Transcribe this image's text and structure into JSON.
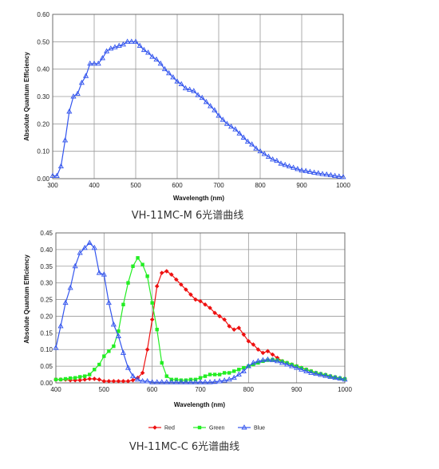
{
  "charts": [
    {
      "caption": "VH-11MC-M 6光谱曲线",
      "chart_data": {
        "type": "line",
        "xlabel": "Wavelength (nm)",
        "ylabel": "Absolute Quantum Efficiency",
        "xlim": [
          300,
          1000
        ],
        "ylim": [
          0,
          0.6
        ],
        "xticks": [
          300,
          400,
          500,
          600,
          700,
          800,
          900,
          1000
        ],
        "yticks": [
          0.0,
          0.1,
          0.2,
          0.3,
          0.4,
          0.5,
          0.6
        ],
        "ytick_labels": [
          "0.00",
          "0.10",
          "0.20",
          "0.30",
          "0.40",
          "0.50",
          "0.60"
        ],
        "grid": true,
        "legend": "none",
        "series": [
          {
            "color": "#3355ee",
            "marker": "triangle",
            "x": [
              300,
              310,
              320,
              330,
              340,
              350,
              360,
              370,
              380,
              390,
              400,
              410,
              420,
              430,
              440,
              450,
              460,
              470,
              480,
              490,
              500,
              510,
              520,
              530,
              540,
              550,
              560,
              570,
              580,
              590,
              600,
              610,
              620,
              630,
              640,
              650,
              660,
              670,
              680,
              690,
              700,
              710,
              720,
              730,
              740,
              750,
              760,
              770,
              780,
              790,
              800,
              810,
              820,
              830,
              840,
              850,
              860,
              870,
              880,
              890,
              900,
              910,
              920,
              930,
              940,
              950,
              960,
              970,
              980,
              990,
              1000
            ],
            "y": [
              0.01,
              0.01,
              0.045,
              0.14,
              0.245,
              0.3,
              0.31,
              0.35,
              0.375,
              0.42,
              0.42,
              0.42,
              0.44,
              0.465,
              0.475,
              0.48,
              0.485,
              0.49,
              0.5,
              0.5,
              0.5,
              0.485,
              0.47,
              0.46,
              0.445,
              0.435,
              0.42,
              0.4,
              0.385,
              0.37,
              0.355,
              0.345,
              0.33,
              0.325,
              0.32,
              0.305,
              0.295,
              0.28,
              0.265,
              0.25,
              0.23,
              0.215,
              0.2,
              0.19,
              0.18,
              0.165,
              0.15,
              0.135,
              0.125,
              0.11,
              0.1,
              0.09,
              0.08,
              0.07,
              0.065,
              0.055,
              0.05,
              0.045,
              0.04,
              0.035,
              0.03,
              0.028,
              0.025,
              0.022,
              0.02,
              0.017,
              0.015,
              0.013,
              0.01,
              0.008,
              0.006
            ]
          }
        ]
      }
    },
    {
      "caption": "VH-11MC-C 6光谱曲线",
      "chart_data": {
        "type": "line",
        "xlabel": "Wavelength (nm)",
        "ylabel": "Absolute Quantum Efficiency",
        "xlim": [
          400,
          1000
        ],
        "ylim": [
          0,
          0.45
        ],
        "xticks": [
          400,
          500,
          600,
          700,
          800,
          900,
          1000
        ],
        "yticks": [
          0.0,
          0.05,
          0.1,
          0.15,
          0.2,
          0.25,
          0.3,
          0.35,
          0.4,
          0.45
        ],
        "ytick_labels": [
          "0.00",
          "0.05",
          "0.10",
          "0.15",
          "0.20",
          "0.25",
          "0.30",
          "0.35",
          "0.40",
          "0.45"
        ],
        "grid": true,
        "legend": "bottom",
        "series": [
          {
            "name": "Red",
            "color": "#ee1111",
            "marker": "diamond",
            "x": [
              400,
              410,
              420,
              430,
              440,
              450,
              460,
              470,
              480,
              490,
              500,
              510,
              520,
              530,
              540,
              550,
              560,
              570,
              580,
              590,
              600,
              610,
              620,
              630,
              640,
              650,
              660,
              670,
              680,
              690,
              700,
              710,
              720,
              730,
              740,
              750,
              760,
              770,
              780,
              790,
              800,
              810,
              820,
              830,
              840,
              850,
              860,
              870,
              880,
              890,
              900,
              910,
              920,
              930,
              940,
              950,
              960,
              970,
              980,
              990,
              1000
            ],
            "y": [
              0.01,
              0.01,
              0.01,
              0.008,
              0.008,
              0.008,
              0.01,
              0.012,
              0.012,
              0.01,
              0.005,
              0.005,
              0.005,
              0.005,
              0.005,
              0.005,
              0.008,
              0.015,
              0.03,
              0.1,
              0.19,
              0.29,
              0.33,
              0.335,
              0.325,
              0.31,
              0.295,
              0.28,
              0.265,
              0.25,
              0.245,
              0.235,
              0.225,
              0.21,
              0.2,
              0.19,
              0.17,
              0.16,
              0.165,
              0.145,
              0.125,
              0.115,
              0.1,
              0.09,
              0.095,
              0.085,
              0.075,
              0.065,
              0.06,
              0.055,
              0.05,
              0.045,
              0.04,
              0.035,
              0.03,
              0.027,
              0.024,
              0.02,
              0.017,
              0.014,
              0.012
            ]
          },
          {
            "name": "Green",
            "color": "#22ee22",
            "marker": "square",
            "x": [
              400,
              410,
              420,
              430,
              440,
              450,
              460,
              470,
              480,
              490,
              500,
              510,
              520,
              530,
              540,
              550,
              560,
              570,
              580,
              590,
              600,
              610,
              620,
              630,
              640,
              650,
              660,
              670,
              680,
              690,
              700,
              710,
              720,
              730,
              740,
              750,
              760,
              770,
              780,
              790,
              800,
              810,
              820,
              830,
              840,
              850,
              860,
              870,
              880,
              890,
              900,
              910,
              920,
              930,
              940,
              950,
              960,
              970,
              980,
              990,
              1000
            ],
            "y": [
              0.01,
              0.01,
              0.012,
              0.014,
              0.015,
              0.018,
              0.02,
              0.025,
              0.04,
              0.055,
              0.08,
              0.095,
              0.11,
              0.155,
              0.235,
              0.3,
              0.35,
              0.375,
              0.355,
              0.32,
              0.24,
              0.16,
              0.06,
              0.02,
              0.01,
              0.01,
              0.008,
              0.008,
              0.01,
              0.01,
              0.015,
              0.02,
              0.025,
              0.025,
              0.025,
              0.03,
              0.03,
              0.035,
              0.04,
              0.045,
              0.05,
              0.055,
              0.06,
              0.065,
              0.068,
              0.07,
              0.068,
              0.065,
              0.06,
              0.055,
              0.05,
              0.045,
              0.04,
              0.035,
              0.03,
              0.027,
              0.024,
              0.02,
              0.017,
              0.014,
              0.012
            ]
          },
          {
            "name": "Blue",
            "color": "#3355ee",
            "marker": "triangle",
            "x": [
              400,
              410,
              420,
              430,
              440,
              450,
              460,
              470,
              480,
              490,
              500,
              510,
              520,
              530,
              540,
              550,
              560,
              570,
              580,
              590,
              600,
              610,
              620,
              630,
              640,
              650,
              660,
              670,
              680,
              690,
              700,
              710,
              720,
              730,
              740,
              750,
              760,
              770,
              780,
              790,
              800,
              810,
              820,
              830,
              840,
              850,
              860,
              870,
              880,
              890,
              900,
              910,
              920,
              930,
              940,
              950,
              960,
              970,
              980,
              990,
              1000
            ],
            "y": [
              0.105,
              0.17,
              0.24,
              0.285,
              0.35,
              0.39,
              0.405,
              0.42,
              0.405,
              0.33,
              0.325,
              0.24,
              0.175,
              0.14,
              0.09,
              0.045,
              0.02,
              0.01,
              0.005,
              0.005,
              0.002,
              0.002,
              0.002,
              0.002,
              0.002,
              0.002,
              0.002,
              0.002,
              0.002,
              0.002,
              0.002,
              0.002,
              0.002,
              0.003,
              0.005,
              0.007,
              0.01,
              0.015,
              0.025,
              0.035,
              0.05,
              0.06,
              0.065,
              0.068,
              0.07,
              0.068,
              0.065,
              0.06,
              0.055,
              0.05,
              0.045,
              0.04,
              0.035,
              0.03,
              0.027,
              0.024,
              0.021,
              0.018,
              0.015,
              0.013,
              0.01
            ]
          }
        ]
      }
    }
  ]
}
